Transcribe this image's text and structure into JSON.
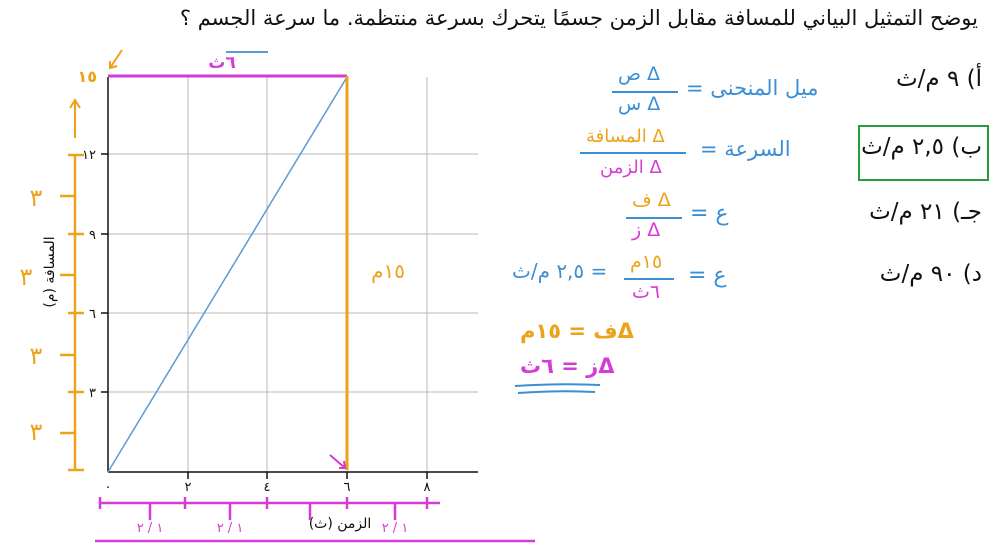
{
  "question": "يوضح التمثيل البياني للمسافة مقابل الزمن جسمًا يتحرك بسرعة منتظمة. ما سرعة الجسم ؟",
  "graph": {
    "y_axis_label": "المسافة (م)",
    "x_axis_label": "الزمن (ث)",
    "y_ticks": [
      "٣",
      "٦",
      "٩",
      "١٢",
      "١٥"
    ],
    "x_ticks": [
      "٠",
      "٢",
      "٤",
      "٦",
      "٨"
    ],
    "origin_label": "٠",
    "annotations": {
      "top_time": "٦ث",
      "vertical_distance": "١٥م",
      "y_step": "٣",
      "x_step": "١ / ٢"
    }
  },
  "options": [
    {
      "key": "أ)",
      "value": "٩ م/ث"
    },
    {
      "key": "ب)",
      "value": "٢,٥ م/ث"
    },
    {
      "key": "جـ)",
      "value": "٢١ م/ث"
    },
    {
      "key": "د)",
      "value": "٩٠ م/ث"
    }
  ],
  "selected_option": 1,
  "work": {
    "slope_label": "ميل المنحنى =",
    "slope_num": "Δ ص",
    "slope_den": "Δ س",
    "speed_label": "السرعة =",
    "speed_num": "Δ المسافة",
    "speed_den": "Δ الزمن",
    "v_symbol": "ع =",
    "v_num": "Δ ف",
    "v_den": "Δ ز",
    "v2_symbol": "ع =",
    "v2_num": "١٥م",
    "v2_den": "٦ث",
    "v2_result": "= ٢,٥ م/ث",
    "delta_f": "Δف = ١٥م",
    "delta_z": "Δز = ٦ث"
  },
  "colors": {
    "grid": "#b9b9b9",
    "axis": "#111111",
    "line": "#5b9bd5",
    "blue": "#3a8fd6",
    "pink": "#d63bd6",
    "orange": "#eea21a",
    "green": "#2a9b3a"
  }
}
